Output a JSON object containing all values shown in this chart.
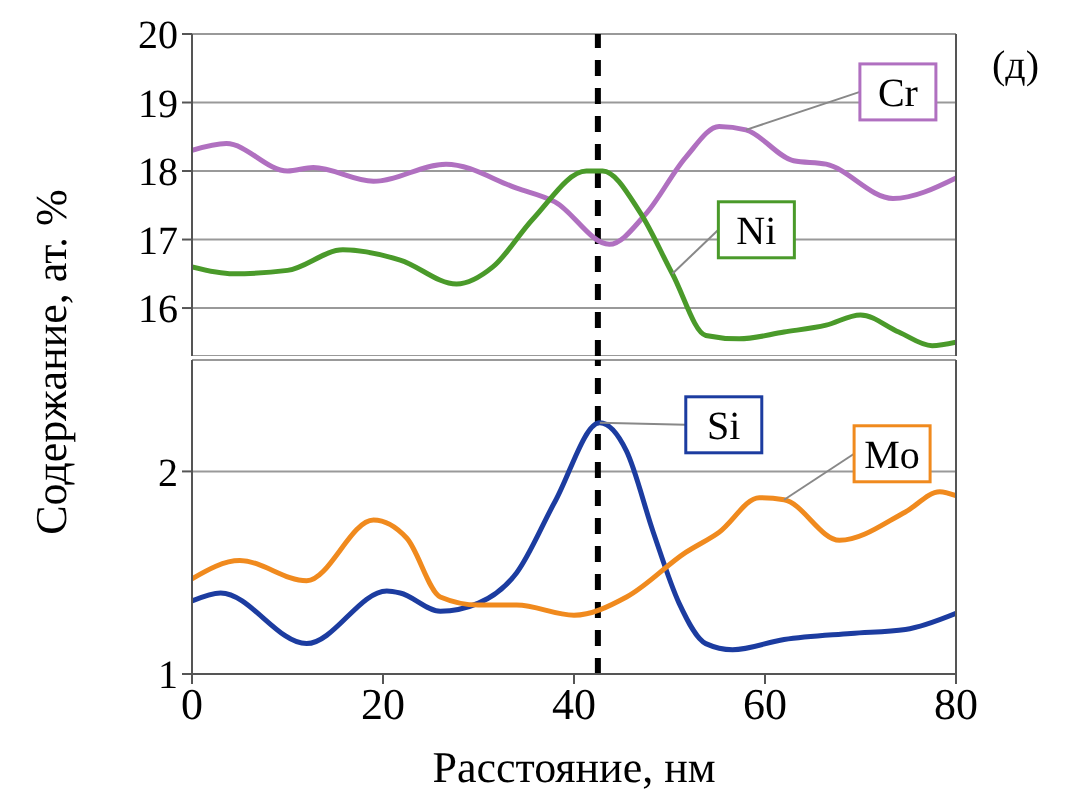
{
  "chart_data": [
    {
      "type": "line",
      "ylabel": "Содержание, ат. %",
      "annotations": [
        "(д)"
      ],
      "xlim": [
        0,
        80
      ],
      "xticks": [
        0,
        20,
        40,
        60,
        80
      ],
      "ylim": [
        15.3,
        20
      ],
      "yticks": [
        16,
        17,
        18,
        19,
        20
      ],
      "tick_labels": "y",
      "grid": "y",
      "marker": "none",
      "line_style": "solid",
      "ref_lines": [
        {
          "axis": "x",
          "value": 42.5,
          "color": "#000000",
          "line_style": "dashed"
        }
      ],
      "series": [
        {
          "name": "Cr",
          "color": "#b070c0",
          "x": [
            0,
            3.6,
            10,
            12.7,
            19,
            26.6,
            34,
            38,
            43.7,
            47.5,
            51.7,
            55.2,
            58,
            63,
            66.4,
            73.4,
            80
          ],
          "values": [
            18.3,
            18.4,
            18.0,
            18.05,
            17.85,
            18.1,
            17.75,
            17.55,
            16.93,
            17.37,
            18.2,
            18.65,
            18.6,
            18.15,
            18.1,
            17.6,
            17.9
          ]
        },
        {
          "name": "Ni",
          "color": "#4a9a2a",
          "x": [
            0,
            4.3,
            10,
            15.8,
            21.8,
            27.7,
            31.5,
            35.7,
            41.3,
            43,
            46.9,
            50.3,
            53.8,
            57.3,
            62,
            66.4,
            70,
            74,
            77.5,
            80
          ],
          "values": [
            16.6,
            16.5,
            16.55,
            16.85,
            16.7,
            16.35,
            16.6,
            17.3,
            18.0,
            18.0,
            17.4,
            16.5,
            15.6,
            15.55,
            15.65,
            15.75,
            15.9,
            15.65,
            15.45,
            15.5
          ]
        }
      ]
    },
    {
      "type": "line",
      "xlabel": "Расстояние, нм",
      "xlim": [
        0,
        80
      ],
      "xticks": [
        0,
        20,
        40,
        60,
        80
      ],
      "ylim": [
        1,
        2.55
      ],
      "yticks": [
        1,
        2
      ],
      "grid": "y",
      "marker": "none",
      "line_style": "solid",
      "ref_lines": [
        {
          "axis": "x",
          "value": 42.5,
          "color": "#000000",
          "line_style": "dashed"
        }
      ],
      "series": [
        {
          "name": "Si",
          "color": "#1c3ca0",
          "x": [
            0,
            3,
            12,
            20.4,
            21.8,
            26,
            30,
            34,
            38,
            42.7,
            45.5,
            48.3,
            51,
            53.8,
            56.6,
            62,
            69,
            74.7,
            80
          ],
          "values": [
            1.36,
            1.4,
            1.15,
            1.41,
            1.4,
            1.31,
            1.35,
            1.5,
            1.85,
            2.24,
            2.1,
            1.7,
            1.35,
            1.15,
            1.12,
            1.17,
            1.2,
            1.22,
            1.3
          ]
        },
        {
          "name": "Mo",
          "color": "#f08a1e",
          "x": [
            0,
            5,
            12,
            19,
            22.5,
            26,
            30,
            34,
            40,
            45.5,
            51.7,
            55.2,
            59.4,
            62,
            67.8,
            74.7,
            78.3,
            80
          ],
          "values": [
            1.47,
            1.56,
            1.46,
            1.76,
            1.67,
            1.38,
            1.34,
            1.34,
            1.29,
            1.38,
            1.6,
            1.7,
            1.87,
            1.86,
            1.66,
            1.8,
            1.9,
            1.88
          ]
        }
      ]
    }
  ]
}
